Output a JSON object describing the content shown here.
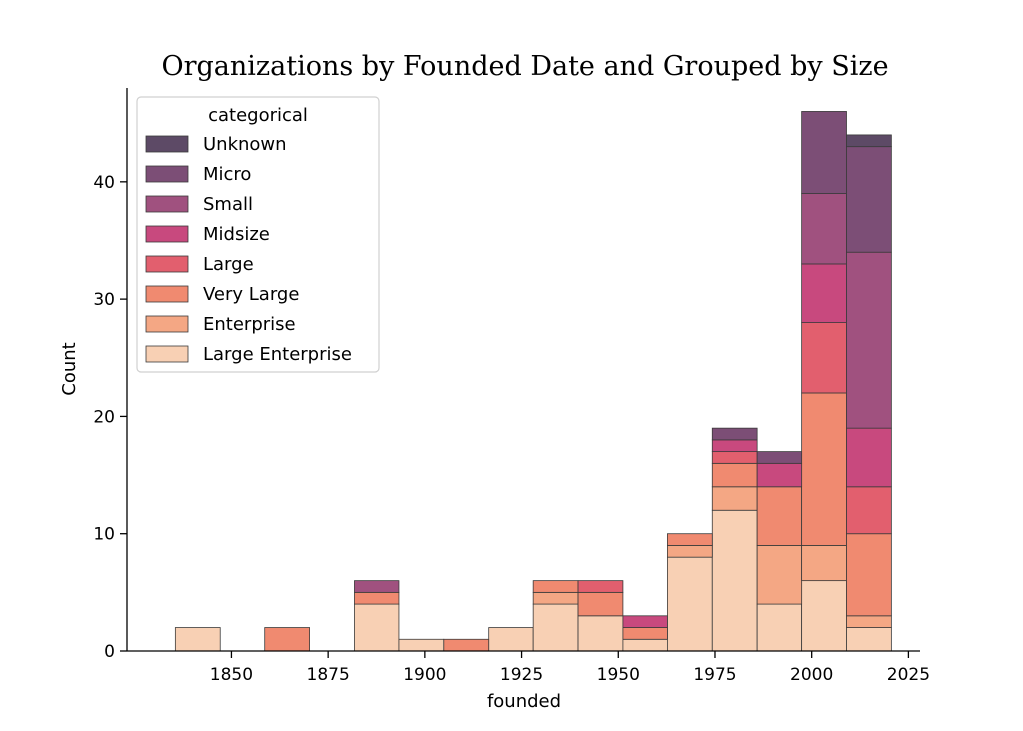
{
  "chart_data": {
    "type": "bar",
    "stacked": true,
    "histogram": true,
    "title": "Organizations by Founded Date and Grouped by Size",
    "xlabel": "founded",
    "ylabel": "Count",
    "xlim": [
      1823,
      2028
    ],
    "ylim": [
      0,
      48
    ],
    "xticks": [
      1850,
      1875,
      1900,
      1925,
      1950,
      1975,
      2000,
      2025
    ],
    "yticks": [
      0,
      10,
      20,
      30,
      40
    ],
    "bin_edges": [
      1835.5,
      1847.1,
      1858.6,
      1870.2,
      1881.8,
      1893.3,
      1904.9,
      1916.5,
      1928.0,
      1939.6,
      1951.2,
      1962.7,
      1974.3,
      1985.9,
      1997.4,
      2009.0,
      2020.6
    ],
    "legend": {
      "title": "categorical",
      "position": "top-left"
    },
    "series": [
      {
        "name": "Large Enterprise",
        "color": "#f8d0b4",
        "values": [
          2,
          0,
          0,
          0,
          4,
          1,
          0,
          2,
          4,
          3,
          1,
          8,
          12,
          4,
          6,
          2
        ]
      },
      {
        "name": "Enterprise",
        "color": "#f4a784",
        "values": [
          0,
          0,
          0,
          0,
          0,
          0,
          0,
          0,
          1,
          0,
          0,
          1,
          2,
          5,
          3,
          1
        ]
      },
      {
        "name": "Very Large",
        "color": "#f08a70",
        "values": [
          0,
          0,
          2,
          0,
          1,
          0,
          1,
          0,
          1,
          2,
          1,
          1,
          2,
          5,
          13,
          7
        ]
      },
      {
        "name": "Large",
        "color": "#e25f6e",
        "values": [
          0,
          0,
          0,
          0,
          0,
          0,
          0,
          0,
          0,
          1,
          0,
          0,
          1,
          0,
          6,
          4
        ]
      },
      {
        "name": "Midsize",
        "color": "#c8497e",
        "values": [
          0,
          0,
          0,
          0,
          0,
          0,
          0,
          0,
          0,
          0,
          1,
          0,
          1,
          2,
          5,
          5
        ]
      },
      {
        "name": "Small",
        "color": "#a0517f",
        "values": [
          0,
          0,
          0,
          0,
          1,
          0,
          0,
          0,
          0,
          0,
          0,
          0,
          0,
          0,
          6,
          15
        ]
      },
      {
        "name": "Micro",
        "color": "#7c4e76",
        "values": [
          0,
          0,
          0,
          0,
          0,
          0,
          0,
          0,
          0,
          0,
          0,
          0,
          1,
          1,
          7,
          9
        ]
      },
      {
        "name": "Unknown",
        "color": "#5d4a66",
        "values": [
          0,
          0,
          0,
          0,
          0,
          0,
          0,
          0,
          0,
          0,
          0,
          0,
          0,
          0,
          0,
          1
        ]
      }
    ]
  }
}
